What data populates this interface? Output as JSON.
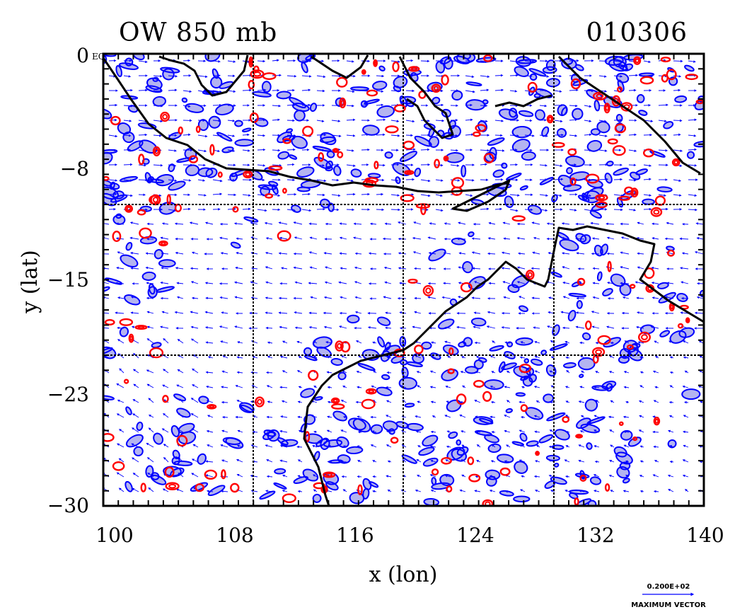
{
  "header": {
    "field_title": "OW 850 mb",
    "date_code": "010306"
  },
  "map": {
    "x_ticks": [
      "100",
      "108",
      "116",
      "124",
      "132",
      "140"
    ],
    "y_ticks": [
      "0",
      "−8",
      "−15",
      "−23",
      "−30"
    ],
    "x_axis_label": "x (lon)",
    "y_axis_label": "y (lat)",
    "equator_label": "EQ",
    "lon_range": [
      100,
      140
    ],
    "lat_range": [
      -30,
      0
    ],
    "grid_lons": [
      110,
      120,
      130
    ],
    "grid_lats": [
      -10,
      -20
    ],
    "colors": {
      "positive_contour": "#ff0000",
      "negative_contour": "#0000ff",
      "negative_fill": "#b4b4f0",
      "wind_vector": "#0000ff",
      "coastline": "#000000"
    }
  },
  "legend": {
    "reference_value": "0.200E+02",
    "caption": "MAXIMUM VECTOR"
  }
}
